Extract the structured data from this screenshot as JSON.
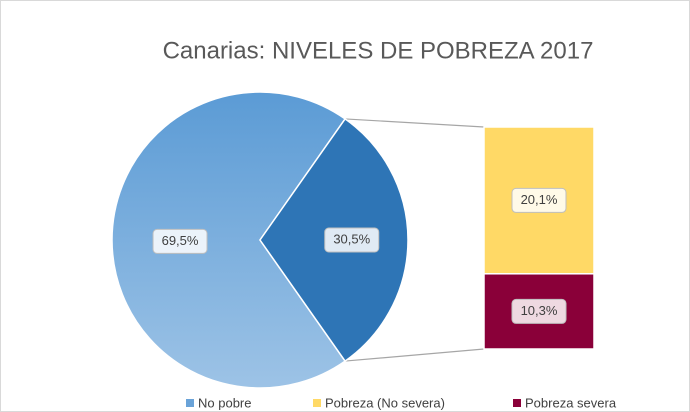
{
  "chart_data": {
    "type": "bar_of_pie",
    "title": "Canarias: NIVELES DE POBREZA 2017",
    "categories": [
      "No pobre",
      "Pobreza (No severa)",
      "Pobreza severa"
    ],
    "values": [
      69.5,
      20.1,
      10.3
    ],
    "value_labels": [
      "69,5%",
      "20,1%",
      "10,3%"
    ],
    "colors": [
      "#6aa3d8",
      "#ffd966",
      "#8a0039"
    ],
    "other_value": 30.5,
    "other_label": "30,5%",
    "other_color": "#2e75b6",
    "legend": "bottom"
  }
}
